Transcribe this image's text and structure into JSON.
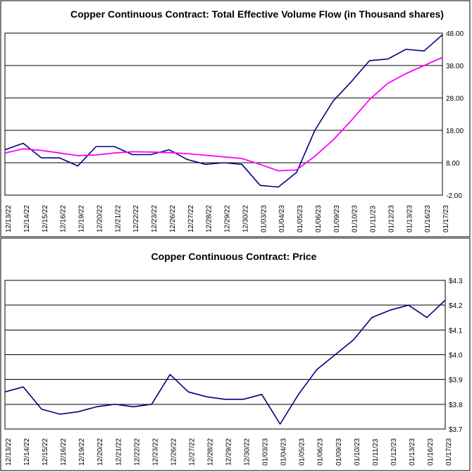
{
  "chart_data": [
    {
      "type": "line",
      "title": "Copper Continuous Contract: Total Effective Volume Flow (in Thousand shares)",
      "xlabel": "",
      "ylabel": "",
      "categories": [
        "12/13/22",
        "12/14/22",
        "12/15/22",
        "12/16/22",
        "12/19/22",
        "12/20/22",
        "12/21/22",
        "12/22/22",
        "12/23/22",
        "12/26/22",
        "12/27/22",
        "12/28/22",
        "12/29/22",
        "12/30/22",
        "01/03/23",
        "01/04/23",
        "01/05/23",
        "01/06/23",
        "01/09/23",
        "01/10/23",
        "01/11/23",
        "01/12/23",
        "01/13/23",
        "01/16/23",
        "01/17/23"
      ],
      "y_tick_labels": [
        "48.00",
        "38.00",
        "28.00",
        "18.00",
        "8.00",
        "-2.00"
      ],
      "ylim": [
        -2,
        48
      ],
      "grid": true,
      "series": [
        {
          "color": "#000080",
          "values": [
            12,
            14,
            9.5,
            9.5,
            7,
            13,
            13,
            10.5,
            10.5,
            12,
            9,
            7.5,
            8,
            7.5,
            1,
            0.5,
            5,
            18,
            27,
            33,
            39.5,
            40,
            43,
            42.5,
            47.5
          ]
        },
        {
          "color": "#ff00ff",
          "values": [
            11,
            12.3,
            11.8,
            11,
            10.2,
            10.4,
            11,
            11.4,
            11.3,
            11.1,
            10.8,
            10.3,
            9.8,
            9.3,
            7.5,
            5.5,
            5.8,
            10,
            15,
            21,
            27.5,
            32.5,
            35.5,
            38,
            40.5
          ]
        }
      ]
    },
    {
      "type": "line",
      "title": "Copper Continuous Contract: Price",
      "xlabel": "",
      "ylabel": "",
      "categories": [
        "12/13/22",
        "12/14/22",
        "12/15/22",
        "12/16/22",
        "12/19/22",
        "12/20/22",
        "12/21/22",
        "12/22/22",
        "12/23/22",
        "12/26/22",
        "12/27/22",
        "12/28/22",
        "12/29/22",
        "12/30/22",
        "01/03/23",
        "01/04/23",
        "01/05/23",
        "01/06/23",
        "01/09/23",
        "01/10/23",
        "01/11/23",
        "01/12/23",
        "01/13/23",
        "01/16/23",
        "01/17/23"
      ],
      "y_tick_labels": [
        "$4.3",
        "$4.2",
        "$4.1",
        "$4.0",
        "$3.9",
        "$3.8",
        "$3.7"
      ],
      "ylim": [
        3.7,
        4.3
      ],
      "grid": true,
      "series": [
        {
          "color": "#000080",
          "values": [
            3.85,
            3.87,
            3.78,
            3.76,
            3.77,
            3.79,
            3.8,
            3.79,
            3.8,
            3.92,
            3.85,
            3.83,
            3.82,
            3.82,
            3.84,
            3.72,
            3.84,
            3.94,
            4.0,
            4.06,
            4.15,
            4.18,
            4.2,
            4.15,
            4.22
          ]
        }
      ]
    }
  ]
}
